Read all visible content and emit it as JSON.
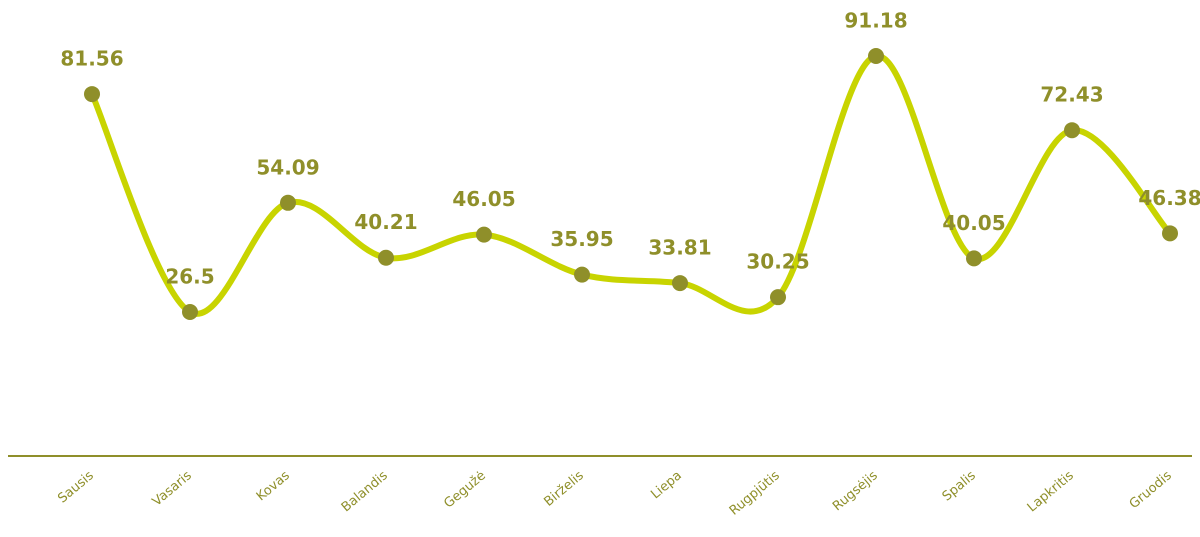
{
  "chart_data": {
    "type": "line",
    "categories": [
      "Sausis",
      "Vasaris",
      "Kovas",
      "Balandis",
      "Gegužė",
      "Birželis",
      "Liepa",
      "Rugpjūtis",
      "Rugsėjis",
      "Spalis",
      "Lapkritis",
      "Gruodis"
    ],
    "values": [
      81.56,
      26.5,
      54.09,
      40.21,
      46.05,
      35.95,
      33.81,
      30.25,
      91.18,
      40.05,
      72.43,
      46.38
    ],
    "color": "#c8d400",
    "marker_color": "#8f8f2a",
    "smooth": true
  }
}
